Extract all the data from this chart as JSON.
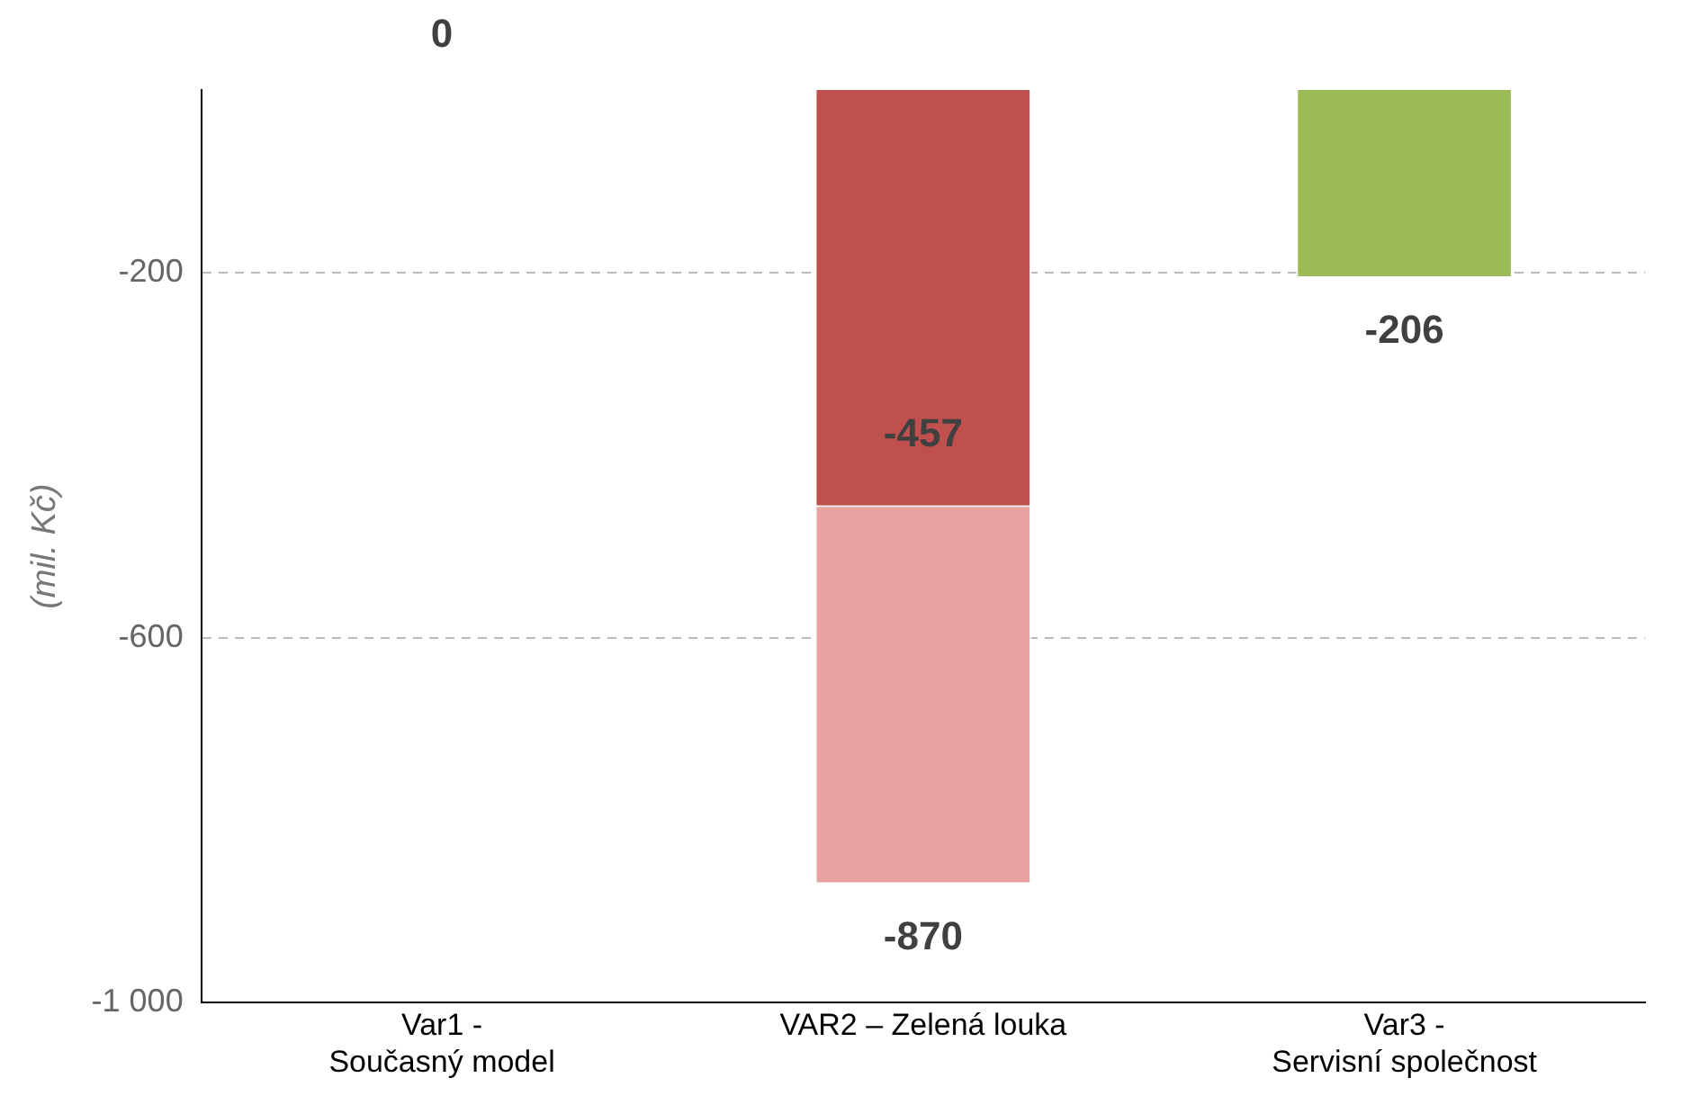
{
  "chart_data": {
    "type": "bar",
    "ylabel": "(mil. Kč)",
    "categories": [
      "Var1 - Současný model",
      "VAR2 – Zelená louka",
      "Var3 - Servisní společnost"
    ],
    "series": [
      {
        "colors": [
          "#4f81bd",
          "#c0504d",
          "#9bbb59"
        ],
        "values": [
          0,
          -457,
          -206
        ]
      },
      {
        "color": "#e6a3a1",
        "values": [
          null,
          -870,
          null
        ]
      }
    ],
    "ylim": [
      -1000,
      0
    ],
    "yticks": [
      -200,
      -600,
      {
        "value": -1000,
        "label": "-1 000"
      }
    ],
    "grid": "y",
    "line_style": "dashed",
    "data_labels": true
  }
}
